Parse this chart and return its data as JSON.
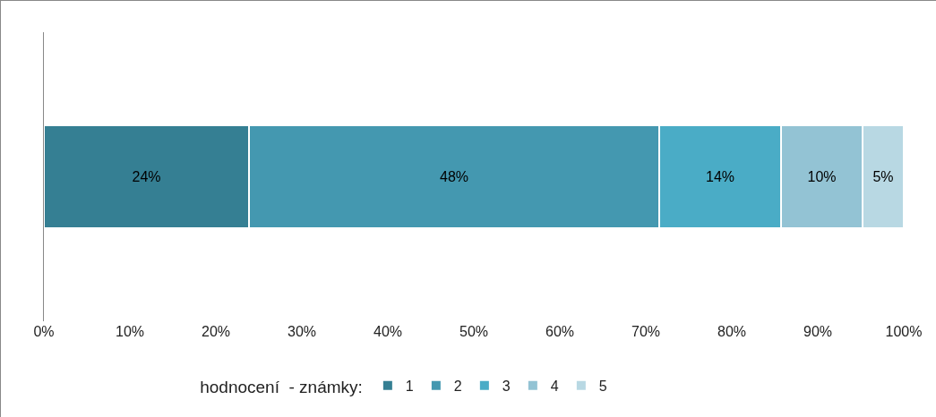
{
  "chart_data": {
    "type": "bar",
    "orientation": "horizontal",
    "stacked": true,
    "categories": [
      null
    ],
    "series": [
      {
        "name": "1",
        "color": "#357f93",
        "values": [
          23.9
        ],
        "value_labels": [
          "24%"
        ]
      },
      {
        "name": "2",
        "color": "#4498b0",
        "values": [
          47.7
        ],
        "value_labels": [
          "48%"
        ]
      },
      {
        "name": "3",
        "color": "#4aacc6",
        "values": [
          14.1
        ],
        "value_labels": [
          "14%"
        ]
      },
      {
        "name": "4",
        "color": "#93c3d4",
        "values": [
          9.5
        ],
        "value_labels": [
          "10%"
        ]
      },
      {
        "name": "5",
        "color": "#b8d8e3",
        "values": [
          4.8
        ],
        "value_labels": [
          "5%"
        ]
      }
    ],
    "xlim": [
      0,
      100
    ],
    "xticks": [
      {
        "value": 0,
        "label": "0%"
      },
      {
        "value": 10,
        "label": "10%"
      },
      {
        "value": 20,
        "label": "20%"
      },
      {
        "value": 30,
        "label": "30%"
      },
      {
        "value": 40,
        "label": "40%"
      },
      {
        "value": 50,
        "label": "50%"
      },
      {
        "value": 60,
        "label": "60%"
      },
      {
        "value": 70,
        "label": "70%"
      },
      {
        "value": 80,
        "label": "80%"
      },
      {
        "value": 90,
        "label": "90%"
      },
      {
        "value": 100,
        "label": "100%"
      }
    ],
    "legend": "bottom",
    "legend_title": "hodnocení  - známky:",
    "grid": false,
    "tick_labels": "x"
  }
}
